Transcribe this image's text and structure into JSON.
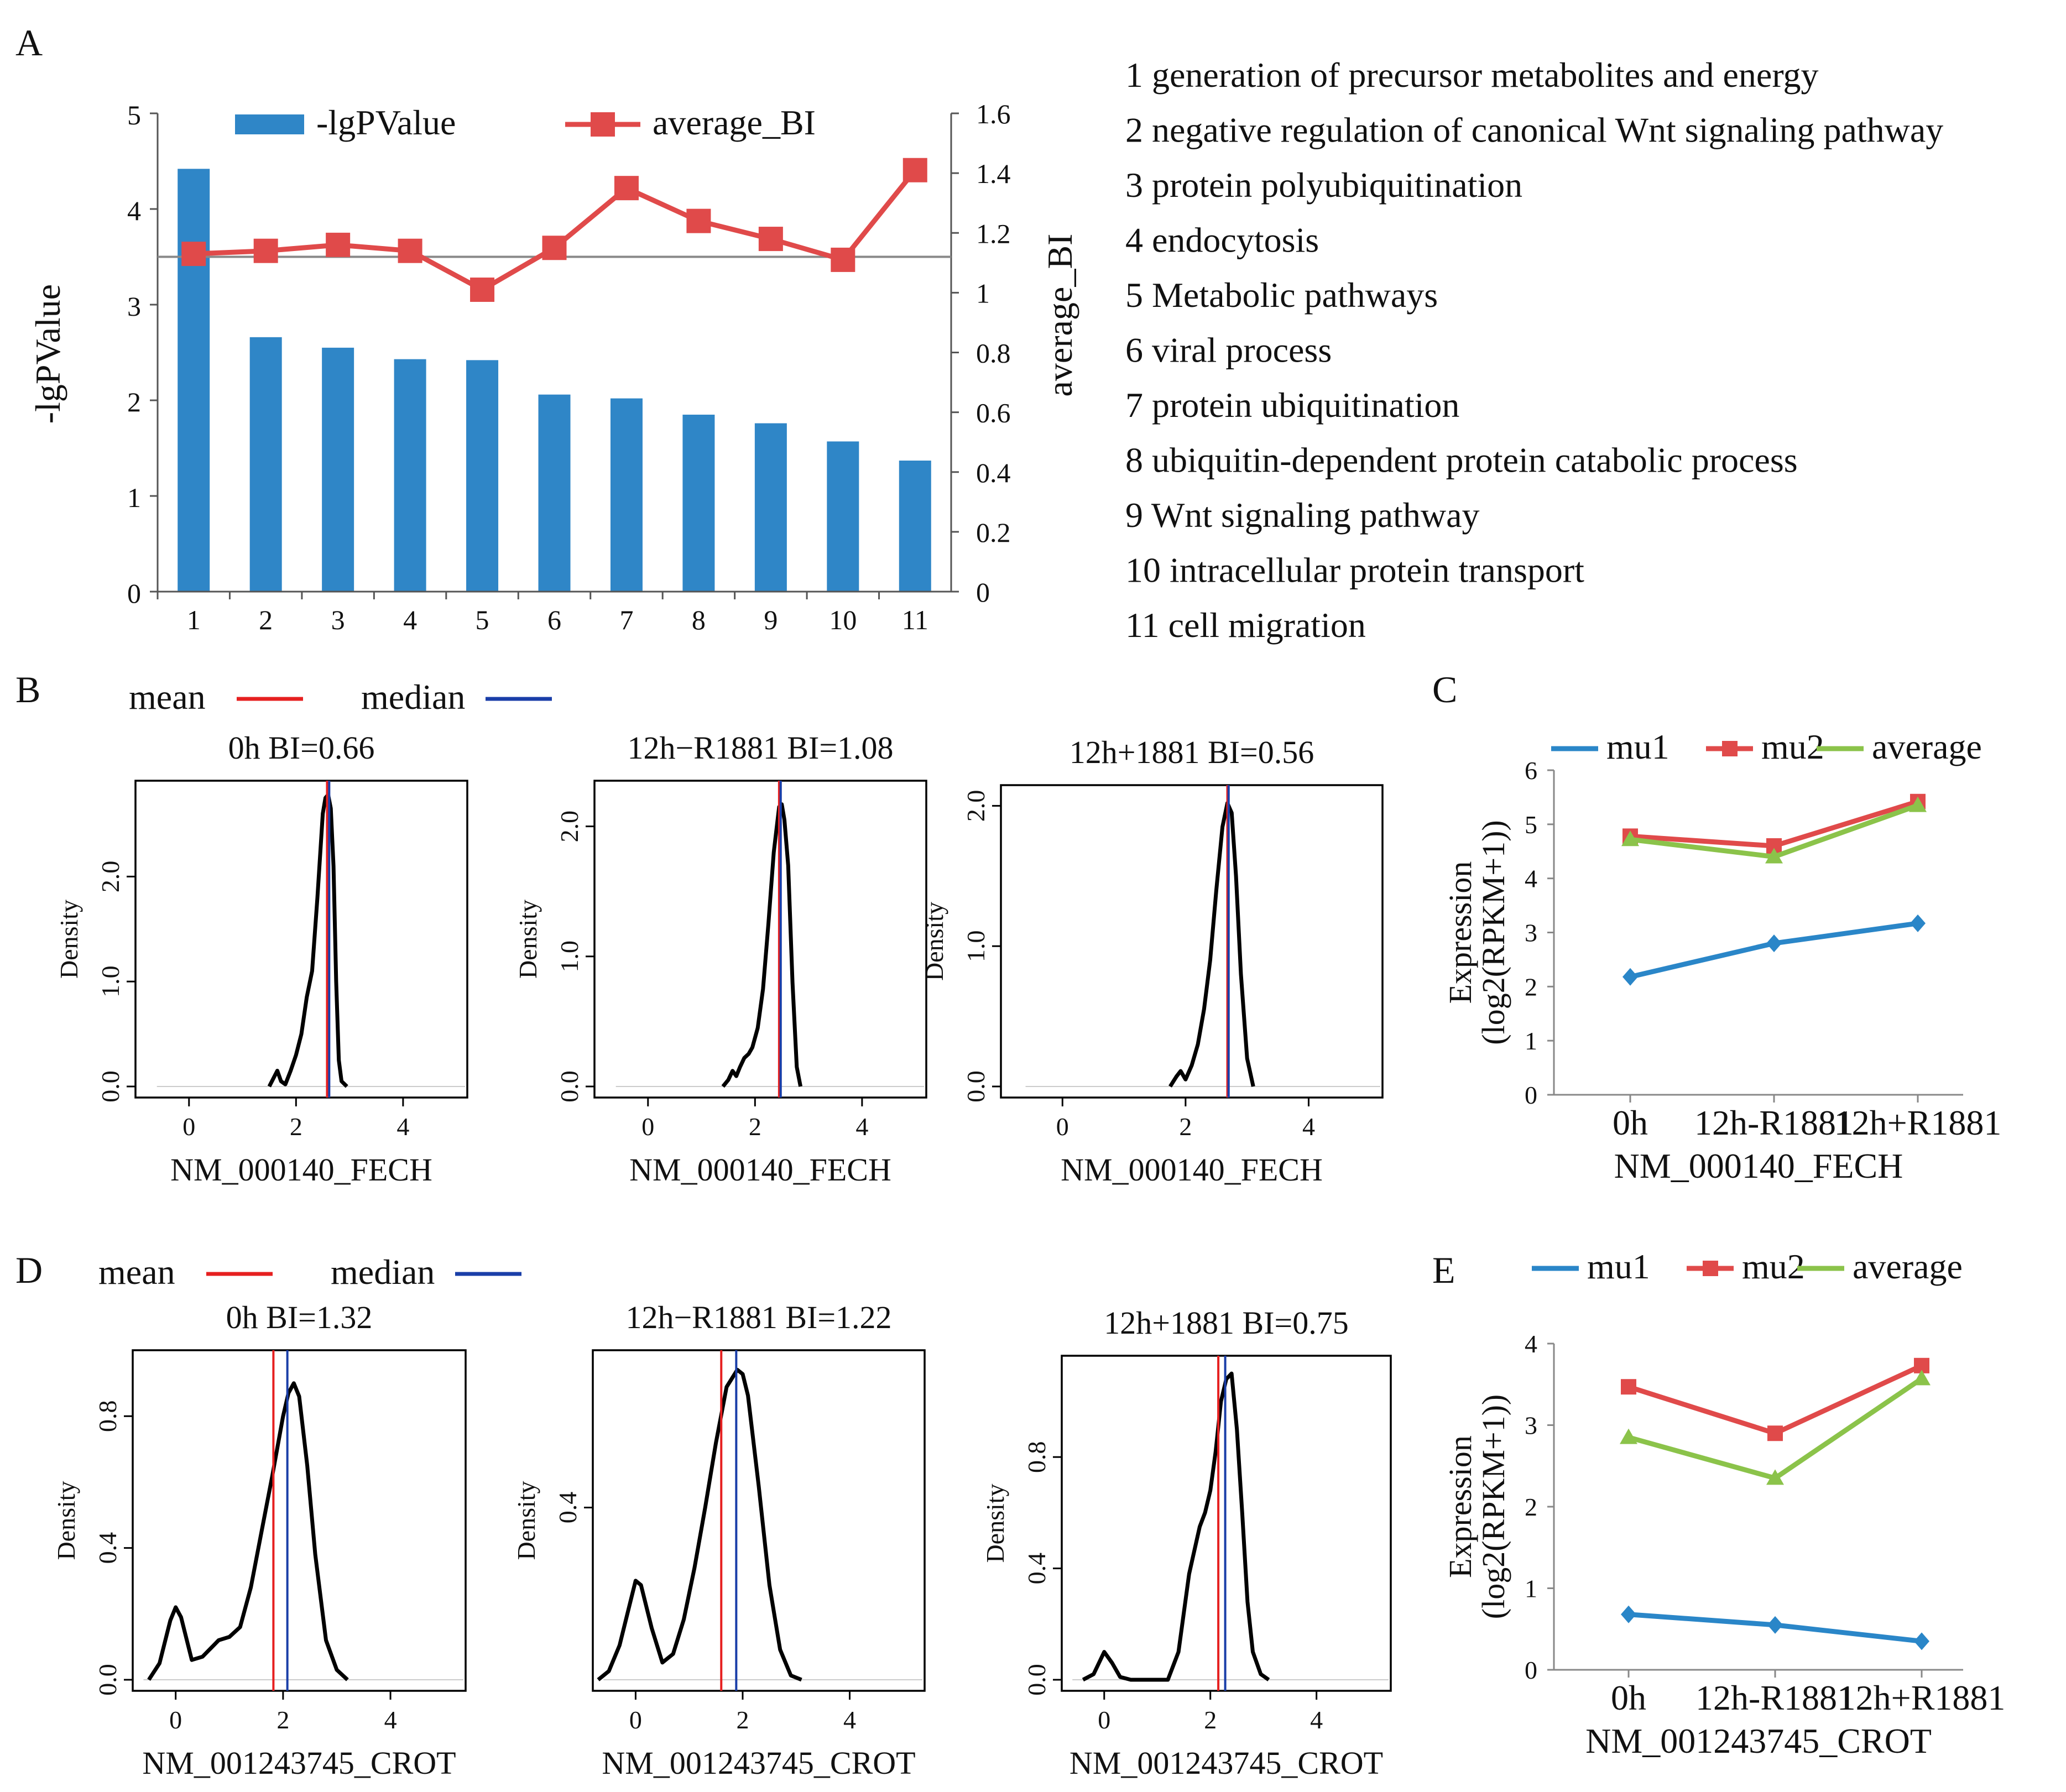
{
  "chart_data": [
    {
      "panel": "A",
      "type": "bar+line",
      "categories": [
        "1",
        "2",
        "3",
        "4",
        "5",
        "6",
        "7",
        "8",
        "9",
        "10",
        "11"
      ],
      "series": [
        {
          "name": "-lgPValue",
          "type": "bar",
          "axis": "left",
          "color": "#2f86c7",
          "values": [
            4.42,
            2.66,
            2.55,
            2.43,
            2.42,
            2.06,
            2.02,
            1.85,
            1.76,
            1.57,
            1.37
          ]
        },
        {
          "name": "average_BI",
          "type": "line",
          "axis": "right",
          "color": "#e04a4a",
          "values": [
            1.13,
            1.14,
            1.16,
            1.14,
            1.01,
            1.15,
            1.35,
            1.24,
            1.18,
            1.11,
            1.41
          ]
        }
      ],
      "ylabel": "-lgPValue",
      "ylim": [
        0,
        5
      ],
      "yticks": [
        "0",
        "1",
        "2",
        "3",
        "4",
        "5"
      ],
      "y2label": "average_BI",
      "y2lim": [
        0,
        1.6
      ],
      "y2ticks": [
        "0",
        "0.2",
        "0.4",
        "0.6",
        "0.8",
        "1",
        "1.2",
        "1.4",
        "1.6"
      ],
      "reference_line_y2": 1.12,
      "legend": [
        "-lgPValue",
        "average_BI"
      ],
      "annotations": [
        "1 generation of precursor metabolites and energy",
        "2 negative regulation of canonical Wnt signaling pathway",
        "3 protein polyubiquitination",
        "4 endocytosis",
        "5 Metabolic pathways",
        "6 viral process",
        "7 protein ubiquitination",
        "8 ubiquitin-dependent protein catabolic process",
        "9 Wnt signaling pathway",
        "10 intracellular protein transport",
        "11 cell migration"
      ]
    },
    {
      "panel": "B",
      "type": "density",
      "legend": [
        "mean",
        "median"
      ],
      "legend_colors": [
        "#e62020",
        "#1a3ea8"
      ],
      "xlabel": "NM_000140_FECH",
      "ylabel": "Density",
      "xlim": [
        -1,
        5.2
      ],
      "xticks": [
        "0",
        "2",
        "4"
      ],
      "plots": [
        {
          "title": "0h BI=0.66",
          "mean": 2.58,
          "median": 2.62,
          "ylim": [
            0,
            2.85
          ],
          "yticks": [
            "0.0",
            "1.0",
            "2.0"
          ],
          "curve_x": [
            1.5,
            1.6,
            1.65,
            1.72,
            1.8,
            1.9,
            2.0,
            2.1,
            2.2,
            2.3,
            2.4,
            2.5,
            2.55,
            2.6,
            2.65,
            2.7,
            2.75,
            2.8,
            2.85,
            2.95
          ],
          "curve_y": [
            0.0,
            0.1,
            0.15,
            0.05,
            0.02,
            0.15,
            0.3,
            0.5,
            0.85,
            1.1,
            1.8,
            2.6,
            2.75,
            2.78,
            2.65,
            2.1,
            1.0,
            0.25,
            0.05,
            0.0
          ]
        },
        {
          "title": "12h−R1881 BI=1.08",
          "mean": 2.45,
          "median": 2.48,
          "ylim": [
            0,
            2.3
          ],
          "yticks": [
            "0.0",
            "1.0",
            "2.0"
          ],
          "curve_x": [
            1.4,
            1.5,
            1.58,
            1.65,
            1.72,
            1.8,
            1.88,
            1.95,
            2.05,
            2.15,
            2.25,
            2.35,
            2.45,
            2.5,
            2.55,
            2.62,
            2.7,
            2.78,
            2.85
          ],
          "curve_y": [
            0.0,
            0.05,
            0.12,
            0.08,
            0.15,
            0.22,
            0.25,
            0.3,
            0.45,
            0.75,
            1.25,
            1.8,
            2.15,
            2.17,
            2.05,
            1.7,
            0.8,
            0.15,
            0.0
          ]
        },
        {
          "title": "12h+1881 BI=0.56",
          "mean": 2.68,
          "median": 2.7,
          "ylim": [
            0,
            2.1
          ],
          "yticks": [
            "0.0",
            "1.0",
            "2.0"
          ],
          "curve_x": [
            1.75,
            1.85,
            1.92,
            2.0,
            2.1,
            2.2,
            2.3,
            2.4,
            2.5,
            2.6,
            2.68,
            2.75,
            2.82,
            2.9,
            3.0,
            3.1
          ],
          "curve_y": [
            0.0,
            0.07,
            0.11,
            0.05,
            0.15,
            0.3,
            0.55,
            0.9,
            1.4,
            1.85,
            2.02,
            1.95,
            1.5,
            0.8,
            0.2,
            0.0
          ]
        }
      ]
    },
    {
      "panel": "C",
      "type": "line",
      "categories": [
        "0h",
        "12h-R1881",
        "12h+R1881"
      ],
      "series": [
        {
          "name": "mu1",
          "color": "#2a86c8",
          "marker": "diamond",
          "values": [
            2.18,
            2.8,
            3.17
          ]
        },
        {
          "name": "mu2",
          "color": "#e04a4a",
          "marker": "square",
          "values": [
            4.78,
            4.6,
            5.42
          ]
        },
        {
          "name": "average",
          "color": "#8bc34a",
          "marker": "triangle",
          "values": [
            4.72,
            4.4,
            5.35
          ]
        }
      ],
      "xlabel": "NM_000140_FECH",
      "ylabel_lines": [
        "Expression",
        "(log2(RPKM+1))"
      ],
      "ylim": [
        0,
        6
      ],
      "yticks": [
        "0",
        "1",
        "2",
        "3",
        "4",
        "5",
        "6"
      ]
    },
    {
      "panel": "D",
      "type": "density",
      "legend": [
        "mean",
        "median"
      ],
      "legend_colors": [
        "#e62020",
        "#1a3ea8"
      ],
      "xlabel": "NM_001243745_CROT",
      "ylabel": "Density",
      "xlim": [
        -0.8,
        5.4
      ],
      "xticks": [
        "0",
        "2",
        "4"
      ],
      "plots": [
        {
          "title": "0h BI=1.32",
          "mean": 1.82,
          "median": 2.08,
          "ylim": [
            0,
            0.98
          ],
          "yticks": [
            "0.0",
            "0.4",
            "0.8"
          ],
          "curve_x": [
            -0.5,
            -0.3,
            -0.1,
            0.0,
            0.1,
            0.3,
            0.5,
            0.8,
            1.0,
            1.2,
            1.4,
            1.6,
            1.8,
            2.0,
            2.1,
            2.2,
            2.3,
            2.45,
            2.6,
            2.8,
            3.0,
            3.2
          ],
          "curve_y": [
            0.0,
            0.05,
            0.18,
            0.22,
            0.19,
            0.06,
            0.07,
            0.12,
            0.13,
            0.16,
            0.28,
            0.45,
            0.62,
            0.8,
            0.87,
            0.9,
            0.86,
            0.65,
            0.38,
            0.12,
            0.03,
            0.0
          ]
        },
        {
          "title": "12h−R1881 BI=1.22",
          "mean": 1.6,
          "median": 1.88,
          "ylim": [
            0,
            0.75
          ],
          "yticks": [
            "0.4"
          ],
          "curve_x": [
            -0.7,
            -0.5,
            -0.3,
            -0.1,
            0.0,
            0.1,
            0.3,
            0.5,
            0.7,
            0.9,
            1.1,
            1.3,
            1.5,
            1.7,
            1.9,
            2.0,
            2.1,
            2.3,
            2.5,
            2.7,
            2.9,
            3.1
          ],
          "curve_y": [
            0.0,
            0.02,
            0.08,
            0.18,
            0.23,
            0.22,
            0.12,
            0.04,
            0.06,
            0.14,
            0.26,
            0.4,
            0.55,
            0.68,
            0.72,
            0.71,
            0.66,
            0.45,
            0.22,
            0.07,
            0.01,
            0.0
          ]
        },
        {
          "title": "12h+1881 BI=0.75",
          "mean": 2.15,
          "median": 2.28,
          "ylim": [
            0,
            1.14
          ],
          "yticks": [
            "0.0",
            "0.4",
            "0.8"
          ],
          "curve_x": [
            -0.4,
            -0.2,
            0.0,
            0.15,
            0.3,
            0.5,
            0.8,
            1.0,
            1.2,
            1.4,
            1.6,
            1.8,
            1.9,
            2.0,
            2.1,
            2.2,
            2.3,
            2.4,
            2.5,
            2.6,
            2.7,
            2.8,
            2.95,
            3.1
          ],
          "curve_y": [
            0.0,
            0.02,
            0.1,
            0.06,
            0.01,
            0.0,
            0.0,
            0.0,
            0.0,
            0.1,
            0.38,
            0.55,
            0.6,
            0.68,
            0.82,
            1.0,
            1.08,
            1.1,
            0.9,
            0.6,
            0.28,
            0.1,
            0.02,
            0.0
          ]
        }
      ]
    },
    {
      "panel": "E",
      "type": "line",
      "categories": [
        "0h",
        "12h-R1881",
        "12h+R1881"
      ],
      "series": [
        {
          "name": "mu1",
          "color": "#2a86c8",
          "marker": "diamond",
          "values": [
            0.68,
            0.55,
            0.35
          ]
        },
        {
          "name": "mu2",
          "color": "#e04a4a",
          "marker": "square",
          "values": [
            3.47,
            2.9,
            3.73
          ]
        },
        {
          "name": "average",
          "color": "#8bc34a",
          "marker": "triangle",
          "values": [
            2.85,
            2.35,
            3.57
          ]
        }
      ],
      "xlabel": "NM_001243745_CROT",
      "ylabel_lines": [
        "Expression",
        "(log2(RPKM+1))"
      ],
      "ylim": [
        0,
        4
      ],
      "yticks": [
        "0",
        "1",
        "2",
        "3",
        "4"
      ]
    }
  ],
  "panel_letters": [
    "A",
    "B",
    "C",
    "D",
    "E"
  ]
}
